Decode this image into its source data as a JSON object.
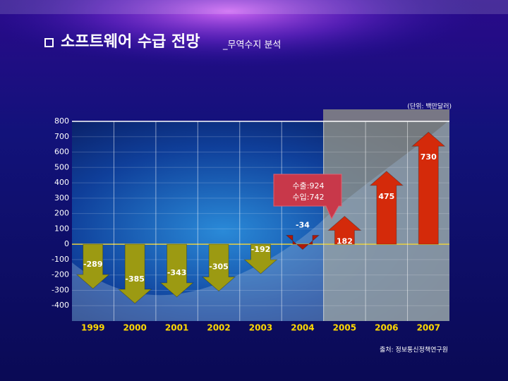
{
  "chart_data": {
    "type": "bar",
    "title": "소프트웨어 수급 전망",
    "subtitle": "_무역수지 분석",
    "unit": "(단위: 백만달러)",
    "source": "출처: 정보통신정책연구원",
    "annotation": [
      "수출:924",
      "수입:742"
    ],
    "categories": [
      "1999",
      "2000",
      "2001",
      "2002",
      "2003",
      "2004",
      "2005",
      "2006",
      "2007"
    ],
    "values": [
      -289,
      -385,
      -343,
      -305,
      -192,
      -34,
      182,
      475,
      730
    ],
    "colors": [
      "#9c9a12",
      "#9c9a12",
      "#9c9a12",
      "#9c9a12",
      "#9c9a12",
      "#b01808",
      "#d42a0a",
      "#d42a0a",
      "#d42a0a"
    ],
    "ylim": [
      -500,
      800
    ],
    "yticks": [
      -400,
      -300,
      -200,
      -100,
      0,
      100,
      200,
      300,
      400,
      500,
      600,
      700,
      800
    ],
    "grid": true
  }
}
